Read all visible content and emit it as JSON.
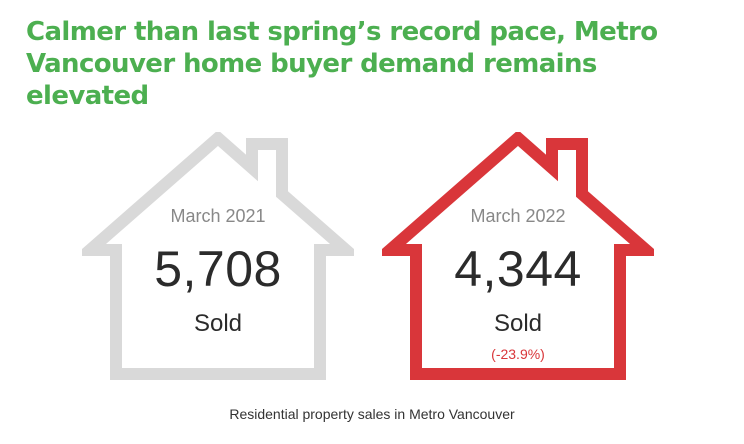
{
  "headline": "Calmer than last spring’s record pace, Metro Vancouver home buyer demand remains elevated",
  "houses": [
    {
      "period": "March 2021",
      "count": "5,708",
      "metric": "Sold",
      "change": "",
      "outline_color": "#d9d9d9"
    },
    {
      "period": "March 2022",
      "count": "4,344",
      "metric": "Sold",
      "change": "(-23.9%)",
      "outline_color": "#d9363a"
    }
  ],
  "caption": "Residential property sales in Metro Vancouver",
  "colors": {
    "headline": "#4caf50",
    "change": "#d9363a",
    "text": "#2b2b2b"
  }
}
